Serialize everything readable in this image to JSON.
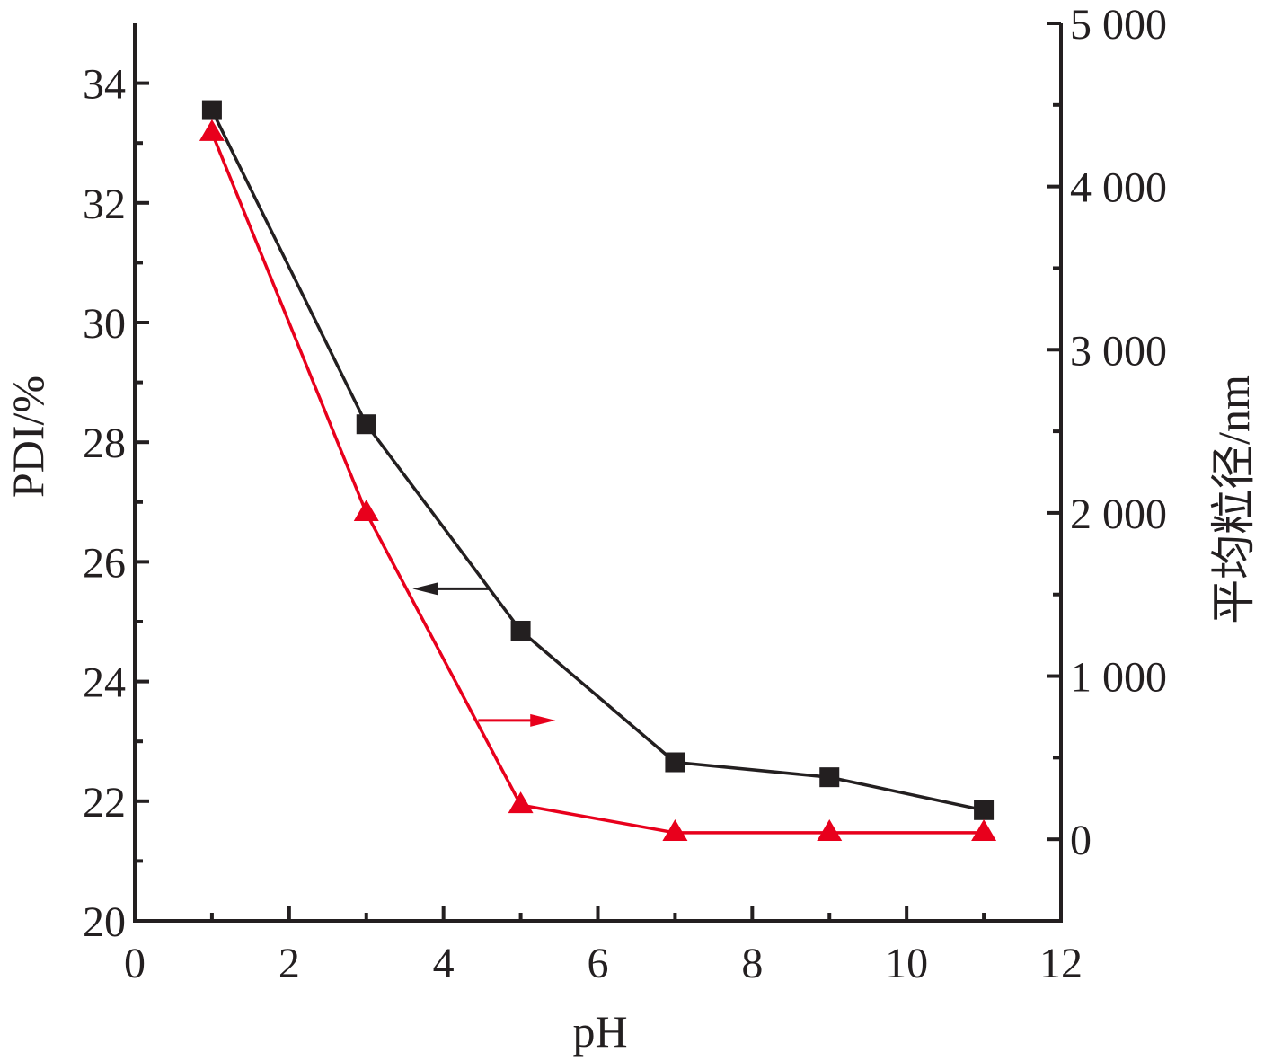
{
  "chart_data": {
    "type": "line",
    "xlabel": "pH",
    "ylabel_left": "PDI/%",
    "ylabel_right": "平均粒径/nm",
    "xlim": [
      0,
      12
    ],
    "ylim_left": [
      20,
      35
    ],
    "ylim_right": [
      -500,
      5000
    ],
    "x_ticks": [
      0,
      2,
      4,
      6,
      8,
      10,
      12
    ],
    "x_tick_labels": [
      "0",
      "2",
      "4",
      "6",
      "8",
      "10",
      "12"
    ],
    "y_left_ticks": [
      20,
      22,
      24,
      26,
      28,
      30,
      32,
      34
    ],
    "y_left_tick_labels": [
      "20",
      "22",
      "24",
      "26",
      "28",
      "30",
      "32",
      "34"
    ],
    "y_right_ticks": [
      0,
      1000,
      2000,
      3000,
      4000,
      5000
    ],
    "y_right_tick_labels": [
      "0",
      "1 000",
      "2 000",
      "3 000",
      "4 000",
      "5 000"
    ],
    "grid": false,
    "legend": "none",
    "series": [
      {
        "axis": "left",
        "marker": "square",
        "color": "#231f20",
        "x": [
          1,
          3,
          5,
          7,
          9,
          11
        ],
        "y": [
          33.55,
          28.3,
          24.85,
          22.65,
          22.4,
          21.85
        ]
      },
      {
        "axis": "right",
        "marker": "triangle",
        "color": "#e8001c",
        "x": [
          1,
          3,
          5,
          7,
          9,
          11
        ],
        "y": [
          4330,
          2000,
          210,
          40,
          40,
          40
        ]
      }
    ],
    "annotations": [
      {
        "type": "arrow",
        "direction": "left",
        "color": "#231f20",
        "x_from": 4.6,
        "x_to": 3.6,
        "y_left": 25.55
      },
      {
        "type": "arrow",
        "direction": "right",
        "color": "#e8001c",
        "x_from": 4.45,
        "x_to": 5.45,
        "y_left": 23.35
      }
    ]
  }
}
